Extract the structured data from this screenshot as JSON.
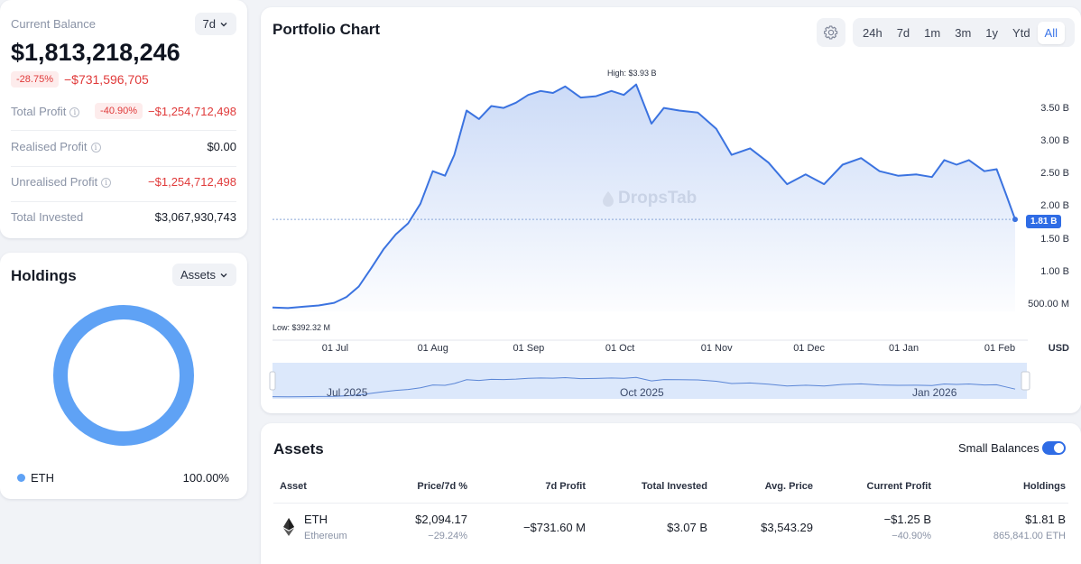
{
  "balance": {
    "label": "Current Balance",
    "period": "7d",
    "amount": "$1,813,218,246",
    "change_pct": "-28.75%",
    "change_value": "−$731,596,705"
  },
  "stats": [
    {
      "label": "Total Profit",
      "pct": "-40.90%",
      "value": "−$1,254,712,498",
      "negative": true
    },
    {
      "label": "Realised Profit",
      "value": "$0.00",
      "negative": false
    },
    {
      "label": "Unrealised Profit",
      "value": "−$1,254,712,498",
      "negative": true
    },
    {
      "label": "Total Invested",
      "value": "$3,067,930,743",
      "negative": false
    }
  ],
  "holdings": {
    "title": "Holdings",
    "filter": "Assets",
    "items": [
      {
        "name": "ETH",
        "pct": "100.00%",
        "color": "#5fa2f5"
      }
    ]
  },
  "chart": {
    "title": "Portfolio Chart",
    "timeframes": [
      "24h",
      "7d",
      "1m",
      "3m",
      "1y",
      "Ytd",
      "All"
    ],
    "active_timeframe": "All",
    "high_label": "High: $3.93 B",
    "low_label": "Low: $392.32 M",
    "current_label": "1.81 B",
    "watermark": "DropsTab",
    "currency": "USD",
    "navigator_labels": [
      "Jul 2025",
      "Oct 2025",
      "Jan 2026"
    ],
    "line_color": "#3b73e0",
    "fill_color": "#dbe6fb"
  },
  "chart_data": {
    "type": "area",
    "x_ticks": [
      "01 Jul",
      "01 Aug",
      "01 Sep",
      "01 Oct",
      "01 Nov",
      "01 Dec",
      "01 Jan",
      "01 Feb"
    ],
    "y_ticks": [
      "500.00 M",
      "1.00 B",
      "1.50 B",
      "2.00 B",
      "2.50 B",
      "3.00 B",
      "3.50 B"
    ],
    "y_tick_values": [
      0.5,
      1.0,
      1.5,
      2.0,
      2.5,
      3.0,
      3.5
    ],
    "ylim": [
      0.4,
      3.93
    ],
    "xlim": [
      "2025-06-10",
      "2026-02-06"
    ],
    "ylabel": "USD",
    "x": [
      "2025-06-10",
      "2025-06-15",
      "2025-06-20",
      "2025-06-25",
      "2025-06-30",
      "2025-07-04",
      "2025-07-08",
      "2025-07-12",
      "2025-07-16",
      "2025-07-20",
      "2025-07-24",
      "2025-07-28",
      "2025-08-01",
      "2025-08-05",
      "2025-08-08",
      "2025-08-12",
      "2025-08-16",
      "2025-08-20",
      "2025-08-24",
      "2025-08-28",
      "2025-09-01",
      "2025-09-05",
      "2025-09-09",
      "2025-09-13",
      "2025-09-18",
      "2025-09-23",
      "2025-09-28",
      "2025-10-02",
      "2025-10-06",
      "2025-10-11",
      "2025-10-15",
      "2025-10-20",
      "2025-10-26",
      "2025-11-01",
      "2025-11-06",
      "2025-11-12",
      "2025-11-18",
      "2025-11-24",
      "2025-11-30",
      "2025-12-06",
      "2025-12-12",
      "2025-12-18",
      "2025-12-24",
      "2025-12-30",
      "2026-01-05",
      "2026-01-10",
      "2026-01-14",
      "2026-01-18",
      "2026-01-22",
      "2026-01-27",
      "2026-01-31",
      "2026-02-03",
      "2026-02-06"
    ],
    "values": [
      0.46,
      0.45,
      0.47,
      0.49,
      0.53,
      0.62,
      0.78,
      1.06,
      1.35,
      1.58,
      1.75,
      2.05,
      2.55,
      2.48,
      2.8,
      3.48,
      3.35,
      3.55,
      3.52,
      3.6,
      3.72,
      3.78,
      3.75,
      3.85,
      3.68,
      3.7,
      3.78,
      3.72,
      3.88,
      3.28,
      3.52,
      3.48,
      3.45,
      3.2,
      2.8,
      2.9,
      2.68,
      2.35,
      2.5,
      2.35,
      2.65,
      2.75,
      2.55,
      2.48,
      2.5,
      2.46,
      2.72,
      2.65,
      2.72,
      2.55,
      2.58,
      2.2,
      1.81
    ],
    "high": "$3.93 B",
    "low": "$392.32 M",
    "current": "1.81 B"
  },
  "assets": {
    "title": "Assets",
    "small_balances_label": "Small Balances",
    "small_balances_on": true,
    "columns": [
      "Asset",
      "Price/7d %",
      "7d Profit",
      "Total Invested",
      "Avg. Price",
      "Current Profit",
      "Holdings"
    ],
    "rows": [
      {
        "symbol": "ETH",
        "name": "Ethereum",
        "price": "$2,094.17",
        "change_7d": "−29.24%",
        "profit_7d": "−$731.60 M",
        "total_invested": "$3.07 B",
        "avg_price": "$3,543.29",
        "current_profit": "−$1.25 B",
        "current_profit_pct": "−40.90%",
        "holdings_value": "$1.81 B",
        "holdings_amount": "865,841.00 ETH"
      }
    ]
  }
}
